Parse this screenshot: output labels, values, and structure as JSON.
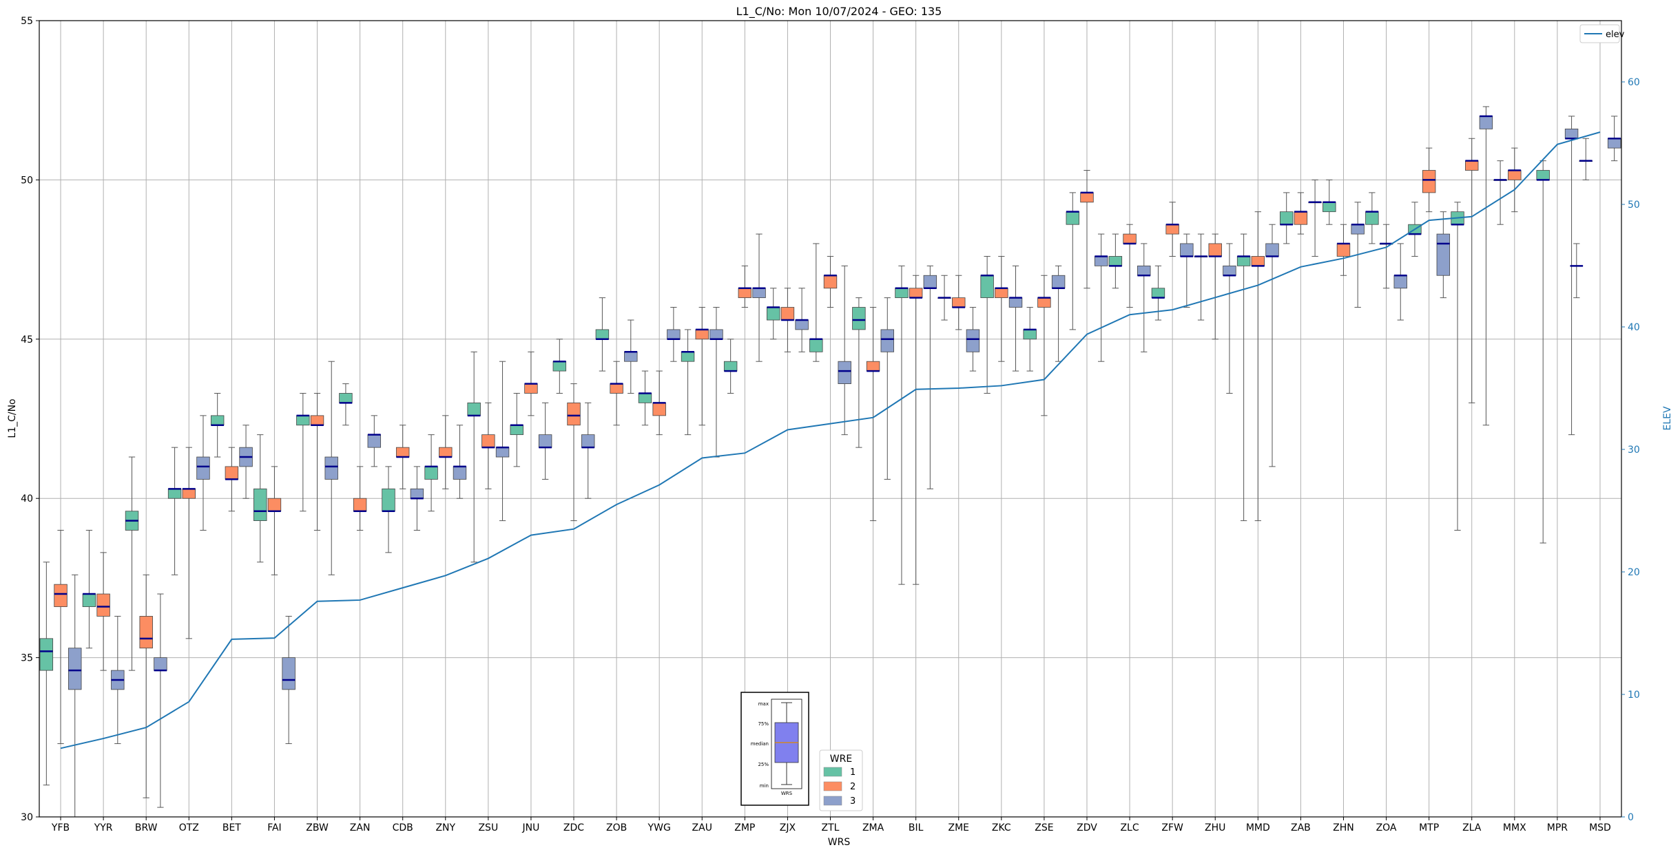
{
  "chart_data": {
    "type": "box",
    "title": "L1_C/No: Mon 10/07/2024 - GEO: 135",
    "xlabel": "WRS",
    "ylabel": "L1_C/No",
    "y2label": "ELEV",
    "ylim": [
      30,
      55
    ],
    "y2lim": [
      0,
      65
    ],
    "yticks": [
      30,
      35,
      40,
      45,
      50,
      55
    ],
    "y2ticks": [
      0,
      10,
      20,
      30,
      40,
      50,
      60
    ],
    "grid": true,
    "categories": [
      "YFB",
      "YYR",
      "BRW",
      "OTZ",
      "BET",
      "FAI",
      "ZBW",
      "ZAN",
      "CDB",
      "ZNY",
      "ZSU",
      "JNU",
      "ZDC",
      "ZOB",
      "YWG",
      "ZAU",
      "ZMP",
      "ZJX",
      "ZTL",
      "ZMA",
      "BIL",
      "ZME",
      "ZKC",
      "ZSE",
      "ZDV",
      "ZLC",
      "ZFW",
      "ZHU",
      "MMD",
      "ZAB",
      "ZHN",
      "ZOA",
      "MTP",
      "ZLA",
      "MMX",
      "MPR",
      "MSD"
    ],
    "wre_colors": {
      "1": "#66c2a5",
      "2": "#fc8d62",
      "3": "#8da0cb"
    },
    "boxes": [
      {
        "wrs": "YFB",
        "wre": 1,
        "min": 31.0,
        "q1": 34.6,
        "median": 35.2,
        "q3": 35.6,
        "max": 38.0
      },
      {
        "wrs": "YFB",
        "wre": 2,
        "min": 32.3,
        "q1": 36.6,
        "median": 37.0,
        "q3": 37.3,
        "max": 39.0
      },
      {
        "wrs": "YFB",
        "wre": 3,
        "min": 30.0,
        "q1": 34.0,
        "median": 34.6,
        "q3": 35.3,
        "max": 37.6
      },
      {
        "wrs": "YYR",
        "wre": 1,
        "min": 35.3,
        "q1": 36.6,
        "median": 37.0,
        "q3": 37.0,
        "max": 39.0
      },
      {
        "wrs": "YYR",
        "wre": 2,
        "min": 34.6,
        "q1": 36.3,
        "median": 36.6,
        "q3": 37.0,
        "max": 38.3
      },
      {
        "wrs": "YYR",
        "wre": 3,
        "min": 32.3,
        "q1": 34.0,
        "median": 34.3,
        "q3": 34.6,
        "max": 36.3
      },
      {
        "wrs": "BRW",
        "wre": 1,
        "min": 34.6,
        "q1": 39.0,
        "median": 39.3,
        "q3": 39.6,
        "max": 41.3
      },
      {
        "wrs": "BRW",
        "wre": 2,
        "min": 30.6,
        "q1": 35.3,
        "median": 35.6,
        "q3": 36.3,
        "max": 37.6
      },
      {
        "wrs": "BRW",
        "wre": 3,
        "min": 30.3,
        "q1": 34.6,
        "median": 34.6,
        "q3": 35.0,
        "max": 37.0
      },
      {
        "wrs": "OTZ",
        "wre": 1,
        "min": 37.6,
        "q1": 40.0,
        "median": 40.3,
        "q3": 40.3,
        "max": 41.6
      },
      {
        "wrs": "OTZ",
        "wre": 2,
        "min": 35.6,
        "q1": 40.0,
        "median": 40.3,
        "q3": 40.3,
        "max": 41.6
      },
      {
        "wrs": "OTZ",
        "wre": 3,
        "min": 39.0,
        "q1": 40.6,
        "median": 41.0,
        "q3": 41.3,
        "max": 42.6
      },
      {
        "wrs": "BET",
        "wre": 1,
        "min": 41.3,
        "q1": 42.3,
        "median": 42.3,
        "q3": 42.6,
        "max": 43.3
      },
      {
        "wrs": "BET",
        "wre": 2,
        "min": 39.6,
        "q1": 40.6,
        "median": 40.6,
        "q3": 41.0,
        "max": 41.6
      },
      {
        "wrs": "BET",
        "wre": 3,
        "min": 40.0,
        "q1": 41.0,
        "median": 41.3,
        "q3": 41.6,
        "max": 42.3
      },
      {
        "wrs": "FAI",
        "wre": 1,
        "min": 38.0,
        "q1": 39.3,
        "median": 39.6,
        "q3": 40.3,
        "max": 42.0
      },
      {
        "wrs": "FAI",
        "wre": 2,
        "min": 37.6,
        "q1": 39.6,
        "median": 39.6,
        "q3": 40.0,
        "max": 41.0
      },
      {
        "wrs": "FAI",
        "wre": 3,
        "min": 32.3,
        "q1": 34.0,
        "median": 34.3,
        "q3": 35.0,
        "max": 36.3
      },
      {
        "wrs": "ZBW",
        "wre": 1,
        "min": 39.6,
        "q1": 42.3,
        "median": 42.6,
        "q3": 42.6,
        "max": 43.3
      },
      {
        "wrs": "ZBW",
        "wre": 2,
        "min": 39.0,
        "q1": 42.3,
        "median": 42.3,
        "q3": 42.6,
        "max": 43.3
      },
      {
        "wrs": "ZBW",
        "wre": 3,
        "min": 37.6,
        "q1": 40.6,
        "median": 41.0,
        "q3": 41.3,
        "max": 44.3
      },
      {
        "wrs": "ZAN",
        "wre": 1,
        "min": 42.3,
        "q1": 43.0,
        "median": 43.0,
        "q3": 43.3,
        "max": 43.6
      },
      {
        "wrs": "ZAN",
        "wre": 2,
        "min": 39.0,
        "q1": 39.6,
        "median": 39.6,
        "q3": 40.0,
        "max": 41.0
      },
      {
        "wrs": "ZAN",
        "wre": 3,
        "min": 41.0,
        "q1": 41.6,
        "median": 42.0,
        "q3": 42.0,
        "max": 42.6
      },
      {
        "wrs": "CDB",
        "wre": 1,
        "min": 38.3,
        "q1": 39.6,
        "median": 39.6,
        "q3": 40.3,
        "max": 41.0
      },
      {
        "wrs": "CDB",
        "wre": 2,
        "min": 40.3,
        "q1": 41.3,
        "median": 41.3,
        "q3": 41.6,
        "max": 42.3
      },
      {
        "wrs": "CDB",
        "wre": 3,
        "min": 39.0,
        "q1": 40.0,
        "median": 40.0,
        "q3": 40.3,
        "max": 41.0
      },
      {
        "wrs": "ZNY",
        "wre": 1,
        "min": 39.6,
        "q1": 40.6,
        "median": 41.0,
        "q3": 41.0,
        "max": 42.0
      },
      {
        "wrs": "ZNY",
        "wre": 2,
        "min": 40.3,
        "q1": 41.3,
        "median": 41.3,
        "q3": 41.6,
        "max": 42.6
      },
      {
        "wrs": "ZNY",
        "wre": 3,
        "min": 40.0,
        "q1": 40.6,
        "median": 41.0,
        "q3": 41.0,
        "max": 42.3
      },
      {
        "wrs": "ZSU",
        "wre": 1,
        "min": 38.0,
        "q1": 42.6,
        "median": 42.6,
        "q3": 43.0,
        "max": 44.6
      },
      {
        "wrs": "ZSU",
        "wre": 2,
        "min": 40.3,
        "q1": 41.6,
        "median": 41.6,
        "q3": 42.0,
        "max": 43.0
      },
      {
        "wrs": "ZSU",
        "wre": 3,
        "min": 39.3,
        "q1": 41.3,
        "median": 41.6,
        "q3": 41.6,
        "max": 44.3
      },
      {
        "wrs": "JNU",
        "wre": 1,
        "min": 41.0,
        "q1": 42.0,
        "median": 42.3,
        "q3": 42.3,
        "max": 43.3
      },
      {
        "wrs": "JNU",
        "wre": 2,
        "min": 42.6,
        "q1": 43.3,
        "median": 43.6,
        "q3": 43.6,
        "max": 44.6
      },
      {
        "wrs": "JNU",
        "wre": 3,
        "min": 40.6,
        "q1": 41.6,
        "median": 41.6,
        "q3": 42.0,
        "max": 43.0
      },
      {
        "wrs": "ZDC",
        "wre": 1,
        "min": 43.3,
        "q1": 44.0,
        "median": 44.3,
        "q3": 44.3,
        "max": 45.0
      },
      {
        "wrs": "ZDC",
        "wre": 2,
        "min": 39.3,
        "q1": 42.3,
        "median": 42.6,
        "q3": 43.0,
        "max": 43.6
      },
      {
        "wrs": "ZDC",
        "wre": 3,
        "min": 40.0,
        "q1": 41.6,
        "median": 41.6,
        "q3": 42.0,
        "max": 43.0
      },
      {
        "wrs": "ZOB",
        "wre": 1,
        "min": 44.0,
        "q1": 45.0,
        "median": 45.0,
        "q3": 45.3,
        "max": 46.3
      },
      {
        "wrs": "ZOB",
        "wre": 2,
        "min": 42.3,
        "q1": 43.3,
        "median": 43.6,
        "q3": 43.6,
        "max": 44.3
      },
      {
        "wrs": "ZOB",
        "wre": 3,
        "min": 43.3,
        "q1": 44.3,
        "median": 44.6,
        "q3": 44.6,
        "max": 45.6
      },
      {
        "wrs": "YWG",
        "wre": 1,
        "min": 42.3,
        "q1": 43.0,
        "median": 43.3,
        "q3": 43.3,
        "max": 44.0
      },
      {
        "wrs": "YWG",
        "wre": 2,
        "min": 42.0,
        "q1": 42.6,
        "median": 43.0,
        "q3": 43.0,
        "max": 44.0
      },
      {
        "wrs": "YWG",
        "wre": 3,
        "min": 44.3,
        "q1": 45.0,
        "median": 45.0,
        "q3": 45.3,
        "max": 46.0
      },
      {
        "wrs": "ZAU",
        "wre": 1,
        "min": 42.0,
        "q1": 44.3,
        "median": 44.6,
        "q3": 44.6,
        "max": 45.3
      },
      {
        "wrs": "ZAU",
        "wre": 2,
        "min": 42.3,
        "q1": 45.0,
        "median": 45.3,
        "q3": 45.3,
        "max": 46.0
      },
      {
        "wrs": "ZAU",
        "wre": 3,
        "min": 41.3,
        "q1": 45.0,
        "median": 45.0,
        "q3": 45.3,
        "max": 46.0
      },
      {
        "wrs": "ZMP",
        "wre": 1,
        "min": 43.3,
        "q1": 44.0,
        "median": 44.0,
        "q3": 44.3,
        "max": 45.0
      },
      {
        "wrs": "ZMP",
        "wre": 2,
        "min": 46.0,
        "q1": 46.3,
        "median": 46.6,
        "q3": 46.6,
        "max": 47.3
      },
      {
        "wrs": "ZMP",
        "wre": 3,
        "min": 44.3,
        "q1": 46.3,
        "median": 46.6,
        "q3": 46.6,
        "max": 48.3
      },
      {
        "wrs": "ZJX",
        "wre": 1,
        "min": 45.0,
        "q1": 45.6,
        "median": 46.0,
        "q3": 46.0,
        "max": 46.6
      },
      {
        "wrs": "ZJX",
        "wre": 2,
        "min": 44.6,
        "q1": 45.6,
        "median": 45.6,
        "q3": 46.0,
        "max": 46.6
      },
      {
        "wrs": "ZJX",
        "wre": 3,
        "min": 44.6,
        "q1": 45.3,
        "median": 45.6,
        "q3": 45.6,
        "max": 46.6
      },
      {
        "wrs": "ZTL",
        "wre": 1,
        "min": 44.3,
        "q1": 44.6,
        "median": 45.0,
        "q3": 45.0,
        "max": 48.0
      },
      {
        "wrs": "ZTL",
        "wre": 2,
        "min": 46.0,
        "q1": 46.6,
        "median": 47.0,
        "q3": 47.0,
        "max": 47.6
      },
      {
        "wrs": "ZTL",
        "wre": 3,
        "min": 42.0,
        "q1": 43.6,
        "median": 44.0,
        "q3": 44.3,
        "max": 47.3
      },
      {
        "wrs": "ZMA",
        "wre": 1,
        "min": 41.6,
        "q1": 45.3,
        "median": 45.6,
        "q3": 46.0,
        "max": 46.3
      },
      {
        "wrs": "ZMA",
        "wre": 2,
        "min": 39.3,
        "q1": 44.0,
        "median": 44.0,
        "q3": 44.3,
        "max": 46.0
      },
      {
        "wrs": "ZMA",
        "wre": 3,
        "min": 40.6,
        "q1": 44.6,
        "median": 45.0,
        "q3": 45.3,
        "max": 46.3
      },
      {
        "wrs": "BIL",
        "wre": 1,
        "min": 37.3,
        "q1": 46.3,
        "median": 46.6,
        "q3": 46.6,
        "max": 47.3
      },
      {
        "wrs": "BIL",
        "wre": 2,
        "min": 37.3,
        "q1": 46.3,
        "median": 46.3,
        "q3": 46.6,
        "max": 47.0
      },
      {
        "wrs": "BIL",
        "wre": 3,
        "min": 40.3,
        "q1": 46.6,
        "median": 46.6,
        "q3": 47.0,
        "max": 47.3
      },
      {
        "wrs": "ZME",
        "wre": 1,
        "min": 45.6,
        "q1": 46.3,
        "median": 46.3,
        "q3": 46.3,
        "max": 47.0
      },
      {
        "wrs": "ZME",
        "wre": 2,
        "min": 45.3,
        "q1": 46.0,
        "median": 46.0,
        "q3": 46.3,
        "max": 47.0
      },
      {
        "wrs": "ZME",
        "wre": 3,
        "min": 44.0,
        "q1": 44.6,
        "median": 45.0,
        "q3": 45.3,
        "max": 46.0
      },
      {
        "wrs": "ZKC",
        "wre": 1,
        "min": 43.3,
        "q1": 46.3,
        "median": 47.0,
        "q3": 47.0,
        "max": 47.6
      },
      {
        "wrs": "ZKC",
        "wre": 2,
        "min": 44.3,
        "q1": 46.3,
        "median": 46.6,
        "q3": 46.6,
        "max": 47.6
      },
      {
        "wrs": "ZKC",
        "wre": 3,
        "min": 44.0,
        "q1": 46.0,
        "median": 46.3,
        "q3": 46.3,
        "max": 47.3
      },
      {
        "wrs": "ZSE",
        "wre": 1,
        "min": 44.0,
        "q1": 45.0,
        "median": 45.3,
        "q3": 45.3,
        "max": 46.0
      },
      {
        "wrs": "ZSE",
        "wre": 2,
        "min": 42.6,
        "q1": 46.0,
        "median": 46.3,
        "q3": 46.3,
        "max": 47.0
      },
      {
        "wrs": "ZSE",
        "wre": 3,
        "min": 44.3,
        "q1": 46.6,
        "median": 46.6,
        "q3": 47.0,
        "max": 47.3
      },
      {
        "wrs": "ZDV",
        "wre": 1,
        "min": 45.3,
        "q1": 48.6,
        "median": 49.0,
        "q3": 49.0,
        "max": 49.6
      },
      {
        "wrs": "ZDV",
        "wre": 2,
        "min": 46.6,
        "q1": 49.3,
        "median": 49.6,
        "q3": 49.6,
        "max": 50.3
      },
      {
        "wrs": "ZDV",
        "wre": 3,
        "min": 44.3,
        "q1": 47.3,
        "median": 47.6,
        "q3": 47.6,
        "max": 48.3
      },
      {
        "wrs": "ZLC",
        "wre": 1,
        "min": 46.6,
        "q1": 47.3,
        "median": 47.3,
        "q3": 47.6,
        "max": 48.3
      },
      {
        "wrs": "ZLC",
        "wre": 2,
        "min": 46.0,
        "q1": 48.0,
        "median": 48.0,
        "q3": 48.3,
        "max": 48.6
      },
      {
        "wrs": "ZLC",
        "wre": 3,
        "min": 44.6,
        "q1": 47.0,
        "median": 47.0,
        "q3": 47.3,
        "max": 48.0
      },
      {
        "wrs": "ZFW",
        "wre": 1,
        "min": 45.6,
        "q1": 46.3,
        "median": 46.3,
        "q3": 46.6,
        "max": 47.3
      },
      {
        "wrs": "ZFW",
        "wre": 2,
        "min": 47.6,
        "q1": 48.3,
        "median": 48.6,
        "q3": 48.6,
        "max": 49.3
      },
      {
        "wrs": "ZFW",
        "wre": 3,
        "min": 46.0,
        "q1": 47.6,
        "median": 47.6,
        "q3": 48.0,
        "max": 48.3
      },
      {
        "wrs": "ZHU",
        "wre": 1,
        "min": 45.6,
        "q1": 47.6,
        "median": 47.6,
        "q3": 47.6,
        "max": 48.3
      },
      {
        "wrs": "ZHU",
        "wre": 2,
        "min": 45.0,
        "q1": 47.6,
        "median": 47.6,
        "q3": 48.0,
        "max": 48.3
      },
      {
        "wrs": "ZHU",
        "wre": 3,
        "min": 43.3,
        "q1": 47.0,
        "median": 47.0,
        "q3": 47.3,
        "max": 48.0
      },
      {
        "wrs": "MMD",
        "wre": 1,
        "min": 39.3,
        "q1": 47.3,
        "median": 47.6,
        "q3": 47.6,
        "max": 48.3
      },
      {
        "wrs": "MMD",
        "wre": 2,
        "min": 39.3,
        "q1": 47.3,
        "median": 47.3,
        "q3": 47.6,
        "max": 49.0
      },
      {
        "wrs": "MMD",
        "wre": 3,
        "min": 41.0,
        "q1": 47.6,
        "median": 47.6,
        "q3": 48.0,
        "max": 48.6
      },
      {
        "wrs": "ZAB",
        "wre": 1,
        "min": 48.0,
        "q1": 48.6,
        "median": 48.6,
        "q3": 49.0,
        "max": 49.6
      },
      {
        "wrs": "ZAB",
        "wre": 2,
        "min": 48.3,
        "q1": 48.6,
        "median": 49.0,
        "q3": 49.0,
        "max": 49.6
      },
      {
        "wrs": "ZAB",
        "wre": 3,
        "min": 47.6,
        "q1": 49.3,
        "median": 49.3,
        "q3": 49.3,
        "max": 50.0
      },
      {
        "wrs": "ZHN",
        "wre": 1,
        "min": 48.6,
        "q1": 49.0,
        "median": 49.3,
        "q3": 49.3,
        "max": 50.0
      },
      {
        "wrs": "ZHN",
        "wre": 2,
        "min": 47.0,
        "q1": 47.6,
        "median": 48.0,
        "q3": 48.0,
        "max": 48.6
      },
      {
        "wrs": "ZHN",
        "wre": 3,
        "min": 46.0,
        "q1": 48.3,
        "median": 48.6,
        "q3": 48.6,
        "max": 49.3
      },
      {
        "wrs": "ZOA",
        "wre": 1,
        "min": 48.0,
        "q1": 48.6,
        "median": 49.0,
        "q3": 49.0,
        "max": 49.6
      },
      {
        "wrs": "ZOA",
        "wre": 2,
        "min": 46.6,
        "q1": 48.0,
        "median": 48.0,
        "q3": 48.0,
        "max": 48.6
      },
      {
        "wrs": "ZOA",
        "wre": 3,
        "min": 45.6,
        "q1": 46.6,
        "median": 47.0,
        "q3": 47.0,
        "max": 48.0
      },
      {
        "wrs": "MTP",
        "wre": 1,
        "min": 47.6,
        "q1": 48.3,
        "median": 48.3,
        "q3": 48.6,
        "max": 49.3
      },
      {
        "wrs": "MTP",
        "wre": 2,
        "min": 49.0,
        "q1": 49.6,
        "median": 50.0,
        "q3": 50.3,
        "max": 51.0
      },
      {
        "wrs": "MTP",
        "wre": 3,
        "min": 46.3,
        "q1": 47.0,
        "median": 48.0,
        "q3": 48.3,
        "max": 49.0
      },
      {
        "wrs": "ZLA",
        "wre": 1,
        "min": 39.0,
        "q1": 48.6,
        "median": 48.6,
        "q3": 49.0,
        "max": 49.3
      },
      {
        "wrs": "ZLA",
        "wre": 2,
        "min": 43.0,
        "q1": 50.3,
        "median": 50.6,
        "q3": 50.6,
        "max": 51.3
      },
      {
        "wrs": "ZLA",
        "wre": 3,
        "min": 42.3,
        "q1": 51.6,
        "median": 52.0,
        "q3": 52.0,
        "max": 52.3
      },
      {
        "wrs": "MMX",
        "wre": 1,
        "min": 48.6,
        "q1": 50.0,
        "median": 50.0,
        "q3": 50.0,
        "max": 50.6
      },
      {
        "wrs": "MMX",
        "wre": 2,
        "min": 49.0,
        "q1": 50.0,
        "median": 50.3,
        "q3": 50.3,
        "max": 51.0
      },
      {
        "wrs": "MPR",
        "wre": 1,
        "min": 38.6,
        "q1": 50.0,
        "median": 50.0,
        "q3": 50.3,
        "max": 50.6
      },
      {
        "wrs": "MPR",
        "wre": 3,
        "min": 42.0,
        "q1": 51.3,
        "median": 51.3,
        "q3": 51.6,
        "max": 52.0
      },
      {
        "wrs": "MPR",
        "wre": 4,
        "min": 46.3,
        "q1": 47.3,
        "median": 47.3,
        "q3": 47.3,
        "max": 48.0
      },
      {
        "wrs": "MSD",
        "wre": 1,
        "min": 50.0,
        "q1": 50.6,
        "median": 50.6,
        "q3": 50.6,
        "max": 51.3
      },
      {
        "wrs": "MSD",
        "wre": 3,
        "min": 50.6,
        "q1": 51.0,
        "median": 51.3,
        "q3": 51.3,
        "max": 52.0
      }
    ],
    "series": [
      {
        "name": "elev",
        "axis": "right",
        "color": "#1f77b4",
        "values": [
          5.6,
          6.4,
          7.3,
          9.4,
          14.5,
          14.6,
          17.6,
          17.7,
          18.7,
          19.7,
          21.1,
          23.0,
          23.5,
          25.5,
          27.1,
          29.3,
          29.7,
          31.6,
          32.1,
          32.6,
          34.9,
          35.0,
          35.2,
          35.7,
          39.4,
          41.0,
          41.4,
          42.4,
          43.4,
          44.9,
          45.6,
          46.5,
          48.7,
          49.0,
          51.2,
          54.9,
          55.9
        ]
      }
    ],
    "legends": [
      {
        "placement": "top-right",
        "entries": [
          "elev"
        ]
      },
      {
        "placement": "bottom-center",
        "title": "WRE",
        "entries": [
          "1",
          "2",
          "3"
        ]
      }
    ],
    "inset_key": {
      "labels": [
        "max",
        "75%",
        "median",
        "25%",
        "min"
      ],
      "xlabel": "WRS"
    }
  }
}
